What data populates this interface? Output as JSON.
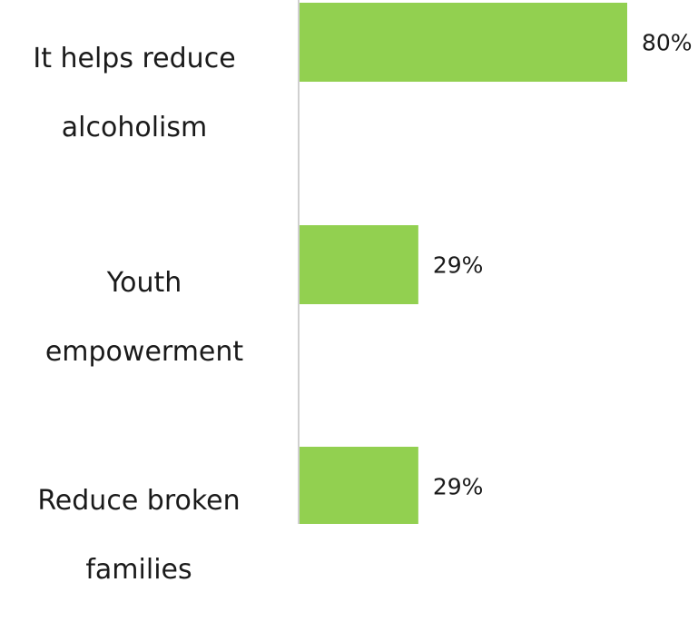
{
  "chart_data": {
    "type": "bar",
    "orientation": "horizontal",
    "categories": [
      "It helps reduce alcoholism",
      "Youth empowerment",
      "Reduce broken families"
    ],
    "category_lines": [
      [
        "It helps reduce",
        "alcoholism"
      ],
      [
        "Youth",
        "empowerment"
      ],
      [
        "Reduce broken",
        "families"
      ]
    ],
    "values": [
      80,
      29,
      29
    ],
    "data_labels": [
      "80%",
      "29%",
      "29%"
    ],
    "xlim": [
      0,
      80
    ],
    "grid": false,
    "legend": "none",
    "colors": {
      "bar": "#92d050",
      "axis": "#d0d0d0",
      "text": "#1a1a1a"
    }
  }
}
